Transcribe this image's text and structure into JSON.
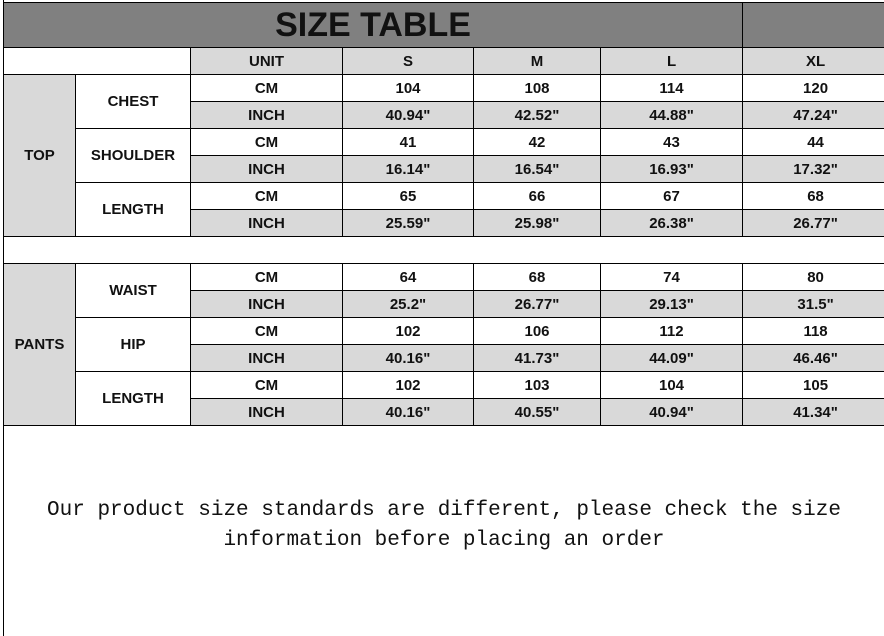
{
  "title": "SIZE TABLE",
  "header": {
    "unit": "UNIT",
    "sizes": [
      "S",
      "M",
      "L",
      "XL"
    ]
  },
  "sections": [
    {
      "name": "TOP",
      "measures": [
        {
          "name": "CHEST",
          "cm": {
            "unit": "CM",
            "values": [
              "104",
              "108",
              "114",
              "120"
            ]
          },
          "inch": {
            "unit": "INCH",
            "values": [
              "40.94\"",
              "42.52\"",
              "44.88\"",
              "47.24\""
            ]
          }
        },
        {
          "name": "SHOULDER",
          "cm": {
            "unit": "CM",
            "values": [
              "41",
              "42",
              "43",
              "44"
            ]
          },
          "inch": {
            "unit": "INCH",
            "values": [
              "16.14\"",
              "16.54\"",
              "16.93\"",
              "17.32\""
            ]
          }
        },
        {
          "name": "LENGTH",
          "cm": {
            "unit": "CM",
            "values": [
              "65",
              "66",
              "67",
              "68"
            ]
          },
          "inch": {
            "unit": "INCH",
            "values": [
              "25.59\"",
              "25.98\"",
              "26.38\"",
              "26.77\""
            ]
          }
        }
      ]
    },
    {
      "name": "PANTS",
      "measures": [
        {
          "name": "WAIST",
          "cm": {
            "unit": "CM",
            "values": [
              "64",
              "68",
              "74",
              "80"
            ]
          },
          "inch": {
            "unit": "INCH",
            "values": [
              "25.2\"",
              "26.77\"",
              "29.13\"",
              "31.5\""
            ]
          }
        },
        {
          "name": "HIP",
          "cm": {
            "unit": "CM",
            "values": [
              "102",
              "106",
              "112",
              "118"
            ]
          },
          "inch": {
            "unit": "INCH",
            "values": [
              "40.16\"",
              "41.73\"",
              "44.09\"",
              "46.46\""
            ]
          }
        },
        {
          "name": "LENGTH",
          "cm": {
            "unit": "CM",
            "values": [
              "102",
              "103",
              "104",
              "105"
            ]
          },
          "inch": {
            "unit": "INCH",
            "values": [
              "40.16\"",
              "40.55\"",
              "40.94\"",
              "41.34\""
            ]
          }
        }
      ]
    }
  ],
  "note_line1": "Our product size standards are different, please check the size",
  "note_line2": "information before placing an order",
  "colors": {
    "title_bg": "#808080",
    "shaded": "#d9d9d9"
  }
}
